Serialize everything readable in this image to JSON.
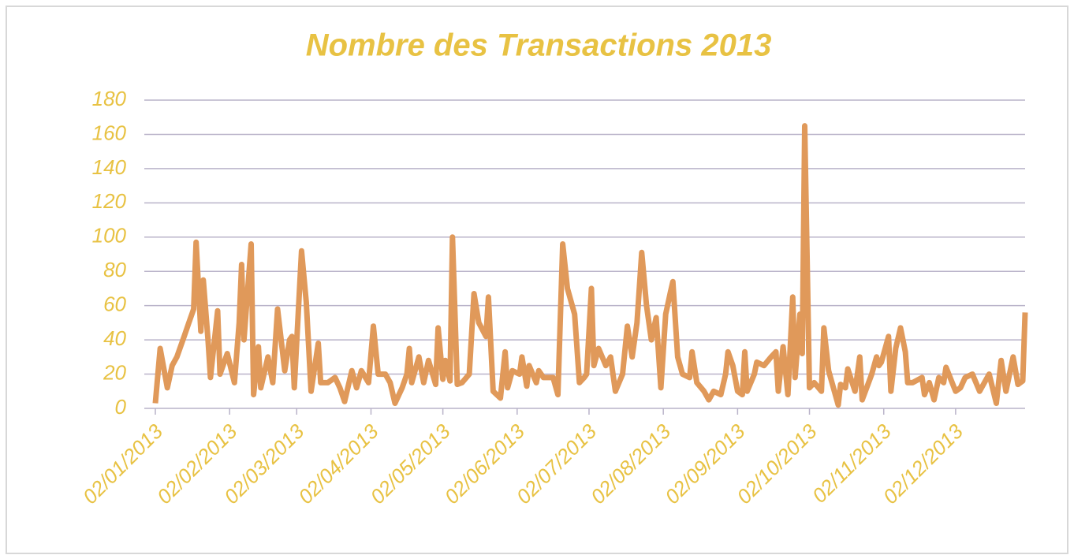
{
  "chart_data": {
    "type": "line",
    "title": "Nombre des Transactions 2013",
    "color": "#e0995a",
    "x": [
      "02/01/2013",
      "04/01/2013",
      "07/01/2013",
      "09/01/2013",
      "11/01/2013",
      "14/01/2013",
      "16/01/2013",
      "18/01/2013",
      "19/01/2013",
      "21/01/2013",
      "22/01/2013",
      "24/01/2013",
      "25/01/2013",
      "28/01/2013",
      "29/01/2013",
      "31/01/2013",
      "01/02/2013",
      "04/02/2013",
      "06/02/2013",
      "07/02/2013",
      "08/02/2013",
      "11/02/2013",
      "12/02/2013",
      "14/02/2013",
      "15/02/2013",
      "18/02/2013",
      "20/02/2013",
      "22/02/2013",
      "25/02/2013",
      "27/02/2013",
      "28/02/2013",
      "01/03/2013",
      "04/03/2013",
      "06/03/2013",
      "08/03/2013",
      "11/03/2013",
      "12/03/2013",
      "15/03/2013",
      "18/03/2013",
      "20/03/2013",
      "22/03/2013",
      "25/03/2013",
      "27/03/2013",
      "29/03/2013",
      "01/04/2013",
      "03/04/2013",
      "05/04/2013",
      "08/04/2013",
      "10/04/2013",
      "12/04/2013",
      "15/04/2013",
      "17/04/2013",
      "18/04/2013",
      "19/04/2013",
      "22/04/2013",
      "24/04/2013",
      "26/04/2013",
      "29/04/2013",
      "30/04/2013",
      "02/05/2013",
      "03/05/2013",
      "05/05/2013",
      "06/05/2013",
      "08/05/2013",
      "10/05/2013",
      "13/05/2013",
      "15/05/2013",
      "17/05/2013",
      "20/05/2013",
      "21/05/2013",
      "23/05/2013",
      "26/05/2013",
      "28/05/2013",
      "29/05/2013",
      "31/05/2013",
      "03/06/2013",
      "04/06/2013",
      "06/06/2013",
      "07/06/2013",
      "10/06/2013",
      "11/06/2013",
      "13/06/2013",
      "17/06/2013",
      "19/06/2013",
      "21/06/2013",
      "23/06/2013",
      "26/06/2013",
      "28/06/2013",
      "30/06/2013",
      "01/07/2013",
      "03/07/2013",
      "04/07/2013",
      "06/07/2013",
      "09/07/2013",
      "11/07/2013",
      "13/07/2013",
      "16/07/2013",
      "18/07/2013",
      "20/07/2013",
      "22/07/2013",
      "24/07/2013",
      "26/07/2013",
      "28/07/2013",
      "30/07/2013",
      "01/08/2013",
      "03/08/2013",
      "05/08/2013",
      "06/08/2013",
      "08/08/2013",
      "10/08/2013",
      "13/08/2013",
      "14/08/2013",
      "16/08/2013",
      "19/08/2013",
      "21/08/2013",
      "23/08/2013",
      "26/08/2013",
      "28/08/2013",
      "29/08/2013",
      "31/08/2013",
      "02/09/2013",
      "04/09/2013",
      "05/09/2013",
      "06/09/2013",
      "09/09/2013",
      "10/09/2013",
      "13/09/2013",
      "16/09/2013",
      "18/09/2013",
      "19/09/2013",
      "21/09/2013",
      "23/09/2013",
      "25/09/2013",
      "26/09/2013",
      "28/09/2013",
      "29/09/2013",
      "30/09/2013",
      "02/10/2013",
      "04/10/2013",
      "07/10/2013",
      "08/10/2013",
      "10/10/2013",
      "14/10/2013",
      "15/10/2013",
      "17/10/2013",
      "18/10/2013",
      "21/10/2013",
      "23/10/2013",
      "24/10/2013",
      "28/10/2013",
      "30/10/2013",
      "31/10/2013",
      "01/11/2013",
      "04/11/2013",
      "05/11/2013",
      "07/11/2013",
      "09/11/2013",
      "11/11/2013",
      "12/11/2013",
      "14/11/2013",
      "18/11/2013",
      "19/11/2013",
      "21/11/2013",
      "23/11/2013",
      "25/11/2013",
      "27/11/2013",
      "28/11/2013",
      "02/12/2013",
      "04/12/2013",
      "06/12/2013",
      "09/12/2013",
      "12/12/2013",
      "16/12/2013",
      "19/12/2013",
      "21/12/2013",
      "23/12/2013",
      "26/12/2013",
      "28/12/2013",
      "30/12/2013",
      "31/12/2013"
    ],
    "values": [
      3,
      35,
      12,
      25,
      30,
      42,
      50,
      58,
      97,
      45,
      75,
      40,
      18,
      57,
      20,
      28,
      32,
      15,
      50,
      84,
      40,
      96,
      8,
      36,
      12,
      30,
      15,
      58,
      22,
      40,
      42,
      12,
      92,
      62,
      10,
      38,
      15,
      15,
      18,
      12,
      4,
      22,
      12,
      22,
      15,
      48,
      20,
      20,
      15,
      3,
      12,
      20,
      35,
      15,
      30,
      15,
      28,
      14,
      47,
      17,
      28,
      16,
      100,
      14,
      15,
      20,
      67,
      50,
      42,
      65,
      10,
      6,
      33,
      12,
      22,
      20,
      30,
      13,
      25,
      15,
      22,
      18,
      18,
      8,
      96,
      70,
      55,
      15,
      18,
      20,
      70,
      25,
      35,
      25,
      30,
      10,
      20,
      48,
      30,
      50,
      91,
      60,
      40,
      53,
      12,
      55,
      68,
      74,
      30,
      20,
      18,
      33,
      15,
      10,
      5,
      10,
      8,
      20,
      33,
      25,
      10,
      8,
      33,
      10,
      20,
      27,
      25,
      30,
      33,
      10,
      36,
      8,
      65,
      18,
      55,
      32,
      165,
      12,
      15,
      10,
      47,
      22,
      2,
      14,
      12,
      23,
      10,
      30,
      5,
      20,
      30,
      25,
      27,
      42,
      10,
      35,
      47,
      33,
      15,
      15,
      18,
      8,
      15,
      5,
      18,
      15,
      24,
      10,
      12,
      18,
      20,
      10,
      20,
      3,
      28,
      10,
      30,
      14,
      16,
      56
    ],
    "xlim": [
      "02/01/2013",
      "31/12/2013"
    ],
    "xticks": [
      "02/01/2013",
      "02/02/2013",
      "02/03/2013",
      "02/04/2013",
      "02/05/2013",
      "02/06/2013",
      "02/07/2013",
      "02/08/2013",
      "02/09/2013",
      "02/10/2013",
      "02/11/2013",
      "02/12/2013"
    ],
    "ylim": [
      0,
      180
    ],
    "yticks": [
      0,
      20,
      40,
      60,
      80,
      100,
      120,
      140,
      160,
      180
    ],
    "grid": true
  }
}
